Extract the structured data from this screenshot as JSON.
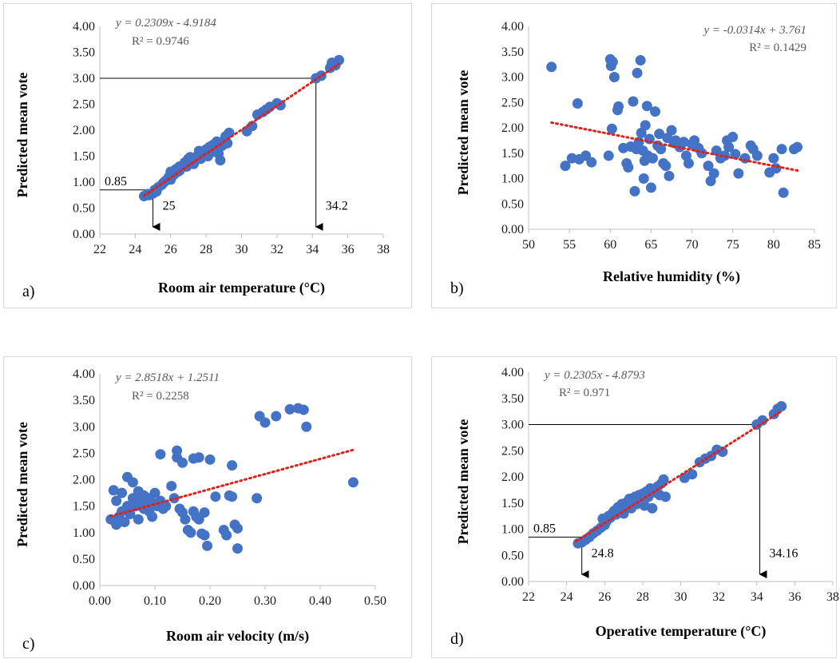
{
  "chart_data": [
    {
      "type": "scatter",
      "panel_label": "a)",
      "xlabel": "Room air temperature (°C)",
      "ylabel": "Predicted mean vote",
      "xlim": [
        22,
        38
      ],
      "xticks": [
        22,
        24,
        26,
        28,
        30,
        32,
        34,
        36,
        38
      ],
      "ylim": [
        0,
        4
      ],
      "yticks": [
        "0.00",
        "0.50",
        "1.00",
        "1.50",
        "2.00",
        "2.50",
        "3.00",
        "3.50",
        "4.00"
      ],
      "equation": "y = 0.2309x - 4.9184",
      "r2": "R² = 0.9746",
      "equation_position": "top-left",
      "trendline": {
        "slope": 0.2309,
        "intercept": -4.9184,
        "x_range": [
          24.5,
          35.5
        ]
      },
      "reference_lines": [
        {
          "x": 25,
          "y": 0.85,
          "y_label": "0.85",
          "x_label": "25"
        },
        {
          "x": 34.2,
          "y": 3.0,
          "x_label": "34.2"
        }
      ],
      "x": [
        24.5,
        24.7,
        24.8,
        25.0,
        25.1,
        25.2,
        25.3,
        25.5,
        25.6,
        25.7,
        25.8,
        25.9,
        26.0,
        26.0,
        26.1,
        26.2,
        26.3,
        26.4,
        26.5,
        26.5,
        26.6,
        26.7,
        26.8,
        26.9,
        27.0,
        27.0,
        27.1,
        27.2,
        27.3,
        27.4,
        27.5,
        27.6,
        27.7,
        27.8,
        27.9,
        28.0,
        28.0,
        28.1,
        28.2,
        28.3,
        28.4,
        28.5,
        28.6,
        28.7,
        28.8,
        28.9,
        29.0,
        29.1,
        29.2,
        29.3,
        30.3,
        30.6,
        30.9,
        31.2,
        31.4,
        31.6,
        32.0,
        32.2,
        34.2,
        34.5,
        35.0,
        35.1,
        35.3,
        35.5
      ],
      "y": [
        0.73,
        0.77,
        0.75,
        0.78,
        0.85,
        0.82,
        0.9,
        0.95,
        0.99,
        1.02,
        1.05,
        1.1,
        1.05,
        1.2,
        1.12,
        1.15,
        1.25,
        1.2,
        1.3,
        1.22,
        1.28,
        1.32,
        1.38,
        1.3,
        1.45,
        1.35,
        1.48,
        1.4,
        1.35,
        1.42,
        1.5,
        1.6,
        1.45,
        1.52,
        1.6,
        1.55,
        1.63,
        1.5,
        1.68,
        1.58,
        1.72,
        1.65,
        1.78,
        1.55,
        1.42,
        1.7,
        1.8,
        1.88,
        1.75,
        1.95,
        1.98,
        2.08,
        2.3,
        2.35,
        2.4,
        2.45,
        2.52,
        2.48,
        3.0,
        3.05,
        3.2,
        3.3,
        3.25,
        3.35
      ]
    },
    {
      "type": "scatter",
      "panel_label": "b)",
      "xlabel": "Relative humidity (%)",
      "ylabel": "Predicted mean vote",
      "xlim": [
        50,
        85
      ],
      "xticks": [
        50,
        55,
        60,
        65,
        70,
        75,
        80,
        85
      ],
      "ylim": [
        0,
        4
      ],
      "yticks": [
        "0.00",
        "0.50",
        "1.00",
        "1.50",
        "2.00",
        "2.50",
        "3.00",
        "3.50",
        "4.00"
      ],
      "equation": "y = -0.0314x + 3.761",
      "r2": "R² = 0.1429",
      "equation_position": "top-right",
      "trendline": {
        "slope": -0.0314,
        "intercept": 3.761,
        "x_range": [
          52.8,
          83
        ]
      },
      "x": [
        52.8,
        54.5,
        55.3,
        56.0,
        56.2,
        57.0,
        57.7,
        59.8,
        60.2,
        60.0,
        60.3,
        60.5,
        60.1,
        60.9,
        61.0,
        61.6,
        62.0,
        62.2,
        62.5,
        62.8,
        63.0,
        63.2,
        63.3,
        63.5,
        63.7,
        63.8,
        64.0,
        64.1,
        64.2,
        64.3,
        64.5,
        64.6,
        64.8,
        65.0,
        65.2,
        65.5,
        65.8,
        66.0,
        66.2,
        66.5,
        66.8,
        67.0,
        67.2,
        67.5,
        67.8,
        68.0,
        68.5,
        69.0,
        69.3,
        69.6,
        70.0,
        70.3,
        70.8,
        71.2,
        72.0,
        72.3,
        72.7,
        73.0,
        73.5,
        74.0,
        74.3,
        74.5,
        75.0,
        75.3,
        75.7,
        76.5,
        77.2,
        77.5,
        78.0,
        79.5,
        80.0,
        80.3,
        81.0,
        81.2,
        82.5,
        82.9
      ],
      "y": [
        3.2,
        1.25,
        1.4,
        2.48,
        1.38,
        1.45,
        1.32,
        1.45,
        1.98,
        3.35,
        3.3,
        3.0,
        3.22,
        2.35,
        2.42,
        1.6,
        1.3,
        1.22,
        1.63,
        2.52,
        0.75,
        1.58,
        3.08,
        1.72,
        3.33,
        1.9,
        1.55,
        1.0,
        1.35,
        2.05,
        2.43,
        1.45,
        1.78,
        0.82,
        1.4,
        2.32,
        1.65,
        1.88,
        1.58,
        1.3,
        1.25,
        1.8,
        1.05,
        1.95,
        1.7,
        1.75,
        1.62,
        1.72,
        1.45,
        1.3,
        1.68,
        1.75,
        1.6,
        1.5,
        1.25,
        0.95,
        1.1,
        1.55,
        1.4,
        1.45,
        1.75,
        1.62,
        1.82,
        1.48,
        1.1,
        1.4,
        1.65,
        1.58,
        1.45,
        1.12,
        1.4,
        1.2,
        1.58,
        0.72,
        1.58,
        1.62
      ]
    },
    {
      "type": "scatter",
      "panel_label": "c)",
      "xlabel": "Room air velocity (m/s)",
      "ylabel": "Predicted mean vote",
      "xlim": [
        0,
        0.5
      ],
      "xticks": [
        "0.00",
        "0.10",
        "0.20",
        "0.30",
        "0.40",
        "0.50"
      ],
      "ylim": [
        0,
        4
      ],
      "yticks": [
        "0.00",
        "0.50",
        "1.00",
        "1.50",
        "2.00",
        "2.50",
        "3.00",
        "3.50",
        "4.00"
      ],
      "equation": "y = 2.8518x + 1.2511",
      "r2": "R² = 0.2258",
      "equation_position": "top-left",
      "trendline": {
        "slope": 2.8518,
        "intercept": 1.2511,
        "x_range": [
          0.02,
          0.46
        ]
      },
      "x": [
        0.02,
        0.025,
        0.03,
        0.03,
        0.035,
        0.04,
        0.04,
        0.045,
        0.05,
        0.05,
        0.055,
        0.06,
        0.06,
        0.065,
        0.07,
        0.07,
        0.075,
        0.08,
        0.08,
        0.085,
        0.09,
        0.09,
        0.095,
        0.1,
        0.1,
        0.105,
        0.11,
        0.11,
        0.115,
        0.12,
        0.13,
        0.135,
        0.14,
        0.14,
        0.145,
        0.15,
        0.15,
        0.155,
        0.16,
        0.165,
        0.17,
        0.17,
        0.175,
        0.18,
        0.18,
        0.185,
        0.19,
        0.19,
        0.195,
        0.2,
        0.21,
        0.225,
        0.23,
        0.235,
        0.24,
        0.24,
        0.245,
        0.25,
        0.25,
        0.285,
        0.29,
        0.3,
        0.32,
        0.345,
        0.36,
        0.37,
        0.375,
        0.46
      ],
      "y": [
        1.25,
        1.8,
        1.15,
        1.6,
        1.3,
        1.4,
        1.75,
        1.2,
        2.05,
        1.5,
        1.35,
        1.95,
        1.65,
        1.5,
        1.78,
        1.25,
        1.6,
        1.45,
        1.7,
        1.55,
        1.65,
        1.4,
        1.3,
        1.55,
        1.75,
        1.5,
        2.48,
        1.6,
        1.45,
        1.5,
        1.88,
        1.65,
        2.42,
        2.55,
        1.45,
        1.38,
        2.32,
        1.25,
        1.05,
        1.0,
        2.4,
        1.4,
        1.3,
        2.42,
        1.25,
        0.98,
        0.95,
        1.38,
        0.75,
        2.38,
        1.68,
        1.05,
        0.95,
        1.7,
        2.27,
        1.68,
        1.15,
        0.7,
        1.08,
        1.65,
        3.2,
        3.08,
        3.2,
        3.33,
        3.35,
        3.32,
        3.0,
        1.95
      ]
    },
    {
      "type": "scatter",
      "panel_label": "d)",
      "xlabel": "Operative temperature (°C)",
      "ylabel": "Predicted mean vote",
      "xlim": [
        22,
        38
      ],
      "xticks": [
        22,
        24,
        26,
        28,
        30,
        32,
        34,
        36,
        38
      ],
      "ylim": [
        0,
        4
      ],
      "yticks": [
        "0.00",
        "0.50",
        "1.00",
        "1.50",
        "2.00",
        "2.50",
        "3.00",
        "3.50",
        "4.00"
      ],
      "equation": "y = 0.2305x - 4.8793",
      "r2": "R² = 0.971",
      "equation_position": "top-left",
      "trendline": {
        "slope": 0.2305,
        "intercept": -4.8793,
        "x_range": [
          24.5,
          35.3
        ]
      },
      "reference_lines": [
        {
          "x": 24.8,
          "y": 0.85,
          "y_label": "0.85",
          "x_label": "24.8"
        },
        {
          "x": 34.16,
          "y": 3.0,
          "x_label": "34.16"
        }
      ],
      "x": [
        24.6,
        24.8,
        25.0,
        25.2,
        25.4,
        25.6,
        25.8,
        25.9,
        26.0,
        26.1,
        26.2,
        26.3,
        26.4,
        26.5,
        26.6,
        26.7,
        26.8,
        26.9,
        27.0,
        27.1,
        27.2,
        27.3,
        27.4,
        27.5,
        27.6,
        27.7,
        27.8,
        27.9,
        28.0,
        28.1,
        28.2,
        28.3,
        28.4,
        28.5,
        28.6,
        28.7,
        28.8,
        28.9,
        29.0,
        29.1,
        29.2,
        30.2,
        30.6,
        31.0,
        31.3,
        31.6,
        31.9,
        32.2,
        34.0,
        34.3,
        34.9,
        35.1,
        35.3
      ],
      "y": [
        0.73,
        0.75,
        0.8,
        0.85,
        0.92,
        0.97,
        1.03,
        1.2,
        1.08,
        1.15,
        1.25,
        1.22,
        1.3,
        1.35,
        1.28,
        1.42,
        1.4,
        1.48,
        1.3,
        1.5,
        1.45,
        1.58,
        1.4,
        1.55,
        1.62,
        1.48,
        1.65,
        1.55,
        1.68,
        1.45,
        1.72,
        1.62,
        1.78,
        1.4,
        1.75,
        1.7,
        1.82,
        1.65,
        1.88,
        1.95,
        1.62,
        1.98,
        2.05,
        2.28,
        2.35,
        2.4,
        2.52,
        2.48,
        3.0,
        3.08,
        3.2,
        3.3,
        3.35
      ]
    }
  ]
}
